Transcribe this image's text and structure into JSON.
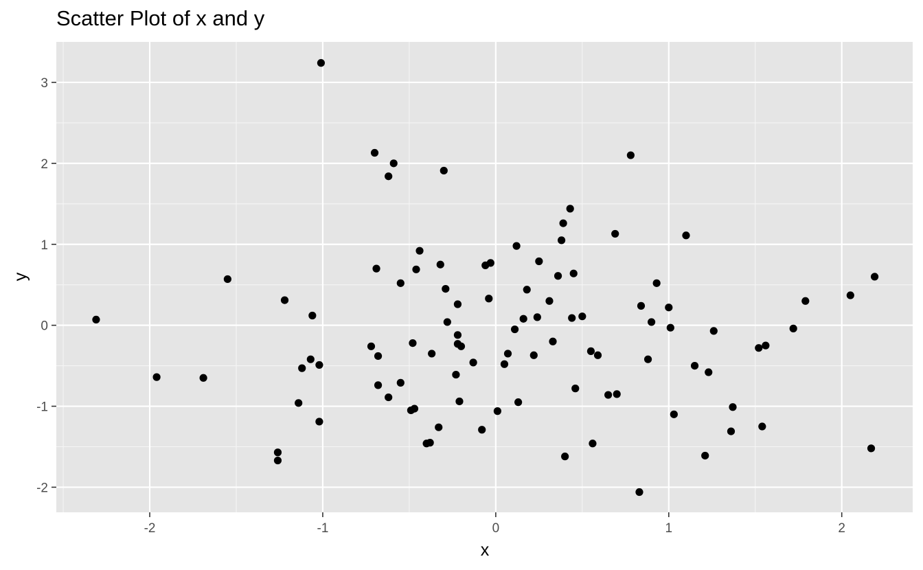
{
  "chart_data": {
    "type": "scatter",
    "title": "Scatter Plot of x and y",
    "xlabel": "x",
    "ylabel": "y",
    "xlim": [
      -2.54,
      2.41
    ],
    "ylim": [
      -2.31,
      3.5
    ],
    "x_ticks": [
      -2,
      -1,
      0,
      1,
      2
    ],
    "y_ticks": [
      -2,
      -1,
      0,
      1,
      2,
      3
    ],
    "grid": true,
    "background": "#e5e5e5",
    "point_color": "#000000",
    "points": [
      {
        "x": -2.31,
        "y": 0.07
      },
      {
        "x": -1.96,
        "y": -0.64
      },
      {
        "x": -1.69,
        "y": -0.65
      },
      {
        "x": -1.55,
        "y": 0.57
      },
      {
        "x": -1.26,
        "y": -1.57
      },
      {
        "x": -1.26,
        "y": -1.67
      },
      {
        "x": -1.22,
        "y": 0.31
      },
      {
        "x": -1.14,
        "y": -0.96
      },
      {
        "x": -1.12,
        "y": -0.53
      },
      {
        "x": -1.07,
        "y": -0.42
      },
      {
        "x": -1.06,
        "y": 0.12
      },
      {
        "x": -1.02,
        "y": -0.49
      },
      {
        "x": -1.02,
        "y": -1.19
      },
      {
        "x": -1.01,
        "y": 3.24
      },
      {
        "x": -0.72,
        "y": -0.26
      },
      {
        "x": -0.7,
        "y": 2.13
      },
      {
        "x": -0.69,
        "y": 0.7
      },
      {
        "x": -0.68,
        "y": -0.38
      },
      {
        "x": -0.68,
        "y": -0.74
      },
      {
        "x": -0.62,
        "y": -0.89
      },
      {
        "x": -0.62,
        "y": 1.84
      },
      {
        "x": -0.59,
        "y": 2.0
      },
      {
        "x": -0.55,
        "y": -0.71
      },
      {
        "x": -0.55,
        "y": 0.52
      },
      {
        "x": -0.49,
        "y": -1.05
      },
      {
        "x": -0.48,
        "y": -0.22
      },
      {
        "x": -0.47,
        "y": -1.03
      },
      {
        "x": -0.46,
        "y": 0.69
      },
      {
        "x": -0.44,
        "y": 0.92
      },
      {
        "x": -0.4,
        "y": -1.46
      },
      {
        "x": -0.38,
        "y": -1.45
      },
      {
        "x": -0.37,
        "y": -0.35
      },
      {
        "x": -0.33,
        "y": -1.26
      },
      {
        "x": -0.32,
        "y": 0.75
      },
      {
        "x": -0.3,
        "y": 1.91
      },
      {
        "x": -0.29,
        "y": 0.45
      },
      {
        "x": -0.28,
        "y": 0.04
      },
      {
        "x": -0.23,
        "y": -0.61
      },
      {
        "x": -0.22,
        "y": 0.26
      },
      {
        "x": -0.22,
        "y": -0.12
      },
      {
        "x": -0.22,
        "y": -0.23
      },
      {
        "x": -0.21,
        "y": -0.94
      },
      {
        "x": -0.2,
        "y": -0.26
      },
      {
        "x": -0.13,
        "y": -0.46
      },
      {
        "x": -0.08,
        "y": -1.29
      },
      {
        "x": -0.06,
        "y": 0.74
      },
      {
        "x": -0.04,
        "y": 0.33
      },
      {
        "x": -0.03,
        "y": 0.77
      },
      {
        "x": 0.01,
        "y": -1.06
      },
      {
        "x": 0.05,
        "y": -0.48
      },
      {
        "x": 0.07,
        "y": -0.35
      },
      {
        "x": 0.11,
        "y": -0.05
      },
      {
        "x": 0.12,
        "y": 0.98
      },
      {
        "x": 0.13,
        "y": -0.95
      },
      {
        "x": 0.16,
        "y": 0.08
      },
      {
        "x": 0.18,
        "y": 0.44
      },
      {
        "x": 0.22,
        "y": -0.37
      },
      {
        "x": 0.24,
        "y": 0.1
      },
      {
        "x": 0.25,
        "y": 0.79
      },
      {
        "x": 0.31,
        "y": 0.3
      },
      {
        "x": 0.33,
        "y": -0.2
      },
      {
        "x": 0.36,
        "y": 0.61
      },
      {
        "x": 0.38,
        "y": 1.05
      },
      {
        "x": 0.39,
        "y": 1.26
      },
      {
        "x": 0.4,
        "y": -1.62
      },
      {
        "x": 0.43,
        "y": 1.44
      },
      {
        "x": 0.44,
        "y": 0.09
      },
      {
        "x": 0.45,
        "y": 0.64
      },
      {
        "x": 0.46,
        "y": -0.78
      },
      {
        "x": 0.5,
        "y": 0.11
      },
      {
        "x": 0.55,
        "y": -0.32
      },
      {
        "x": 0.56,
        "y": -1.46
      },
      {
        "x": 0.59,
        "y": -0.37
      },
      {
        "x": 0.65,
        "y": -0.86
      },
      {
        "x": 0.69,
        "y": 1.13
      },
      {
        "x": 0.7,
        "y": -0.85
      },
      {
        "x": 0.78,
        "y": 2.1
      },
      {
        "x": 0.83,
        "y": -2.06
      },
      {
        "x": 0.84,
        "y": 0.24
      },
      {
        "x": 0.88,
        "y": -0.42
      },
      {
        "x": 0.9,
        "y": 0.04
      },
      {
        "x": 0.93,
        "y": 0.52
      },
      {
        "x": 1.0,
        "y": 0.22
      },
      {
        "x": 1.01,
        "y": -0.03
      },
      {
        "x": 1.03,
        "y": -1.1
      },
      {
        "x": 1.1,
        "y": 1.11
      },
      {
        "x": 1.15,
        "y": -0.5
      },
      {
        "x": 1.21,
        "y": -1.61
      },
      {
        "x": 1.23,
        "y": -0.58
      },
      {
        "x": 1.26,
        "y": -0.07
      },
      {
        "x": 1.36,
        "y": -1.31
      },
      {
        "x": 1.37,
        "y": -1.01
      },
      {
        "x": 1.52,
        "y": -0.28
      },
      {
        "x": 1.54,
        "y": -1.25
      },
      {
        "x": 1.56,
        "y": -0.25
      },
      {
        "x": 1.72,
        "y": -0.04
      },
      {
        "x": 1.79,
        "y": 0.3
      },
      {
        "x": 2.05,
        "y": 0.37
      },
      {
        "x": 2.17,
        "y": -1.52
      },
      {
        "x": 2.19,
        "y": 0.6
      }
    ]
  }
}
